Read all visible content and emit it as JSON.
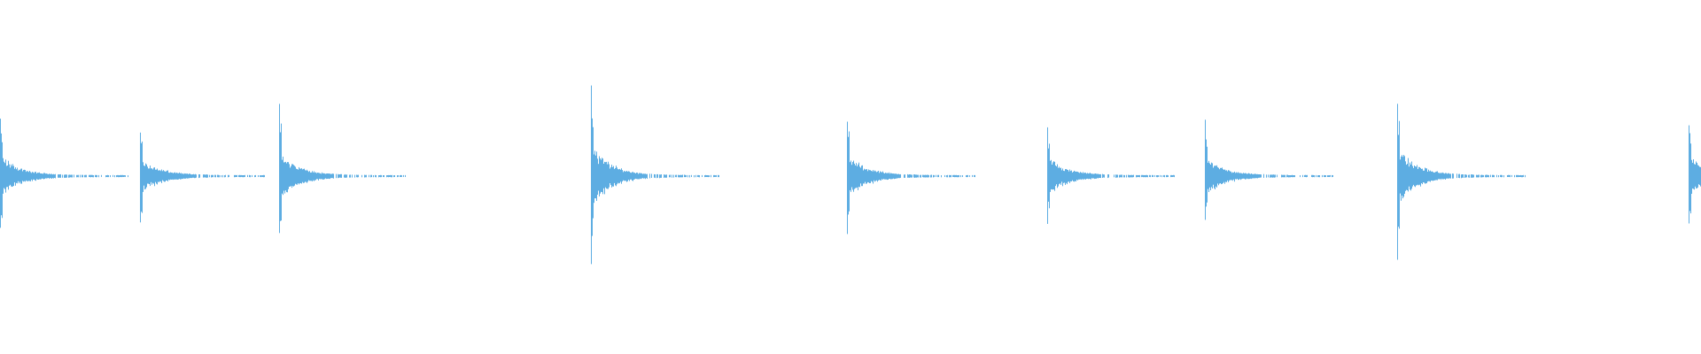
{
  "chart_data": {
    "type": "area",
    "title": "",
    "xlabel": "",
    "ylabel": "",
    "grid": false,
    "legend": "none",
    "color": "#5DADE2",
    "ylim": [
      -1,
      1
    ],
    "series": [
      {
        "transient_peak_amplitudes": [
          0.31,
          0.27,
          0.36,
          0.47,
          0.33,
          0.28,
          0.28,
          0.43,
          0.3
        ]
      }
    ]
  }
}
